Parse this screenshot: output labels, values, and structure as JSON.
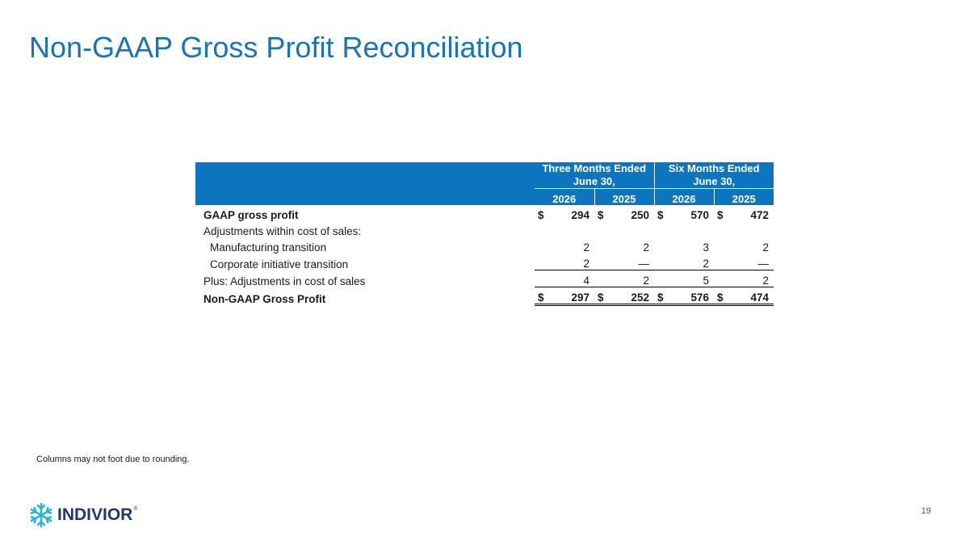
{
  "slide": {
    "title": "Non-GAAP Gross Profit Reconciliation",
    "footnote": "Columns may not foot due to rounding.",
    "page_number": "19"
  },
  "brand": {
    "name": "INDIVIOR",
    "registered": "®",
    "accent_color": "#1a73b8",
    "header_fill": "#0b76bf",
    "logo_color": "#1f3a6e"
  },
  "table": {
    "group_headers": [
      {
        "line1": "Three Months Ended",
        "line2": "June 30,"
      },
      {
        "line1": "Six Months Ended",
        "line2": "June 30,"
      }
    ],
    "years": [
      "2026",
      "2025",
      "2026",
      "2025"
    ],
    "rows": {
      "gaap": {
        "label": "GAAP gross profit",
        "cur": [
          "$",
          "$",
          "$",
          "$"
        ],
        "values": [
          "294",
          "250",
          "570",
          "472"
        ]
      },
      "adj_heading": {
        "label": "Adjustments within cost of sales:"
      },
      "mfg": {
        "label": "Manufacturing transition",
        "values": [
          "2",
          "2",
          "3",
          "2"
        ]
      },
      "corp": {
        "label": "Corporate initiative transition",
        "values": [
          "2",
          "—",
          "2",
          "—"
        ]
      },
      "plus": {
        "label": "Plus: Adjustments in cost of sales",
        "values": [
          "4",
          "2",
          "5",
          "2"
        ]
      },
      "nongaap": {
        "label": "Non-GAAP Gross Profit",
        "cur": [
          "$",
          "$",
          "$",
          "$"
        ],
        "values": [
          "297",
          "252",
          "576",
          "474"
        ]
      }
    }
  }
}
